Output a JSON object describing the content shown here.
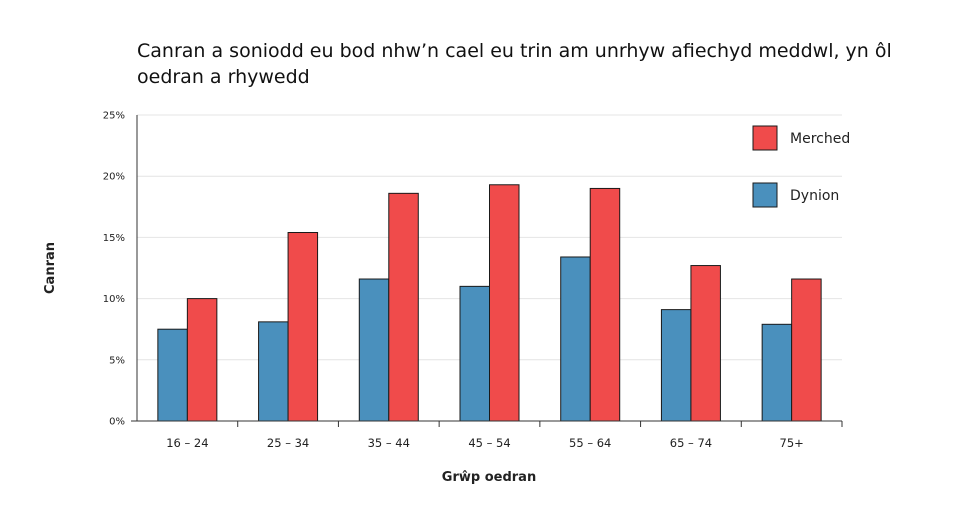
{
  "chart_data": {
    "type": "bar",
    "title": "Canran a soniodd eu bod nhw’n cael eu trin am unrhyw afiechyd meddwl, yn ôl oedran a rhywedd",
    "xlabel": "Grŵp oedran",
    "ylabel": "Canran",
    "categories": [
      "16 – 24",
      "25 – 34",
      "35 – 44",
      "45 – 54",
      "55 – 64",
      "65 – 74",
      "75+"
    ],
    "series": [
      {
        "name": "Dynion",
        "color": "#4a90bd",
        "values": [
          7.5,
          8.1,
          11.6,
          11.0,
          13.4,
          9.1,
          7.9
        ]
      },
      {
        "name": "Merched",
        "color": "#f04b4b",
        "values": [
          10.0,
          15.4,
          18.6,
          19.3,
          19.0,
          12.7,
          11.6
        ]
      }
    ],
    "legend_order": [
      "Merched",
      "Dynion"
    ],
    "yticks": [
      "0%",
      "5%",
      "10%",
      "15%",
      "20%",
      "25%"
    ],
    "ylim": [
      0,
      25
    ],
    "grid": true,
    "legend_position": "top-right"
  }
}
